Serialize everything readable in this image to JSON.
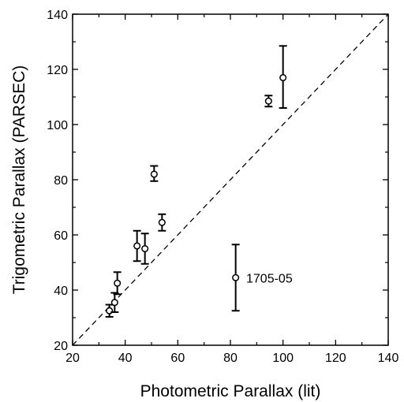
{
  "chart_data": {
    "type": "scatter",
    "title": "",
    "xlabel": "Photometric Parallax (lit)",
    "ylabel": "Trigometric Parallax (PARSEC)",
    "xlim": [
      20,
      140
    ],
    "ylim": [
      20,
      140
    ],
    "x_ticks": [
      20,
      40,
      60,
      80,
      100,
      120,
      140
    ],
    "y_ticks": [
      20,
      40,
      60,
      80,
      100,
      120,
      140
    ],
    "grid": false,
    "reference_line": {
      "style": "dashed",
      "from": [
        20,
        20
      ],
      "to": [
        140,
        140
      ]
    },
    "points": [
      {
        "x": 34,
        "y": 32.5,
        "err_low": 2.2,
        "err_high": 2.2
      },
      {
        "x": 36,
        "y": 35.5,
        "err_low": 3.5,
        "err_high": 3.5
      },
      {
        "x": 37,
        "y": 42.5,
        "err_low": 4.0,
        "err_high": 4.0
      },
      {
        "x": 44.5,
        "y": 56,
        "err_low": 5.5,
        "err_high": 5.5
      },
      {
        "x": 47.5,
        "y": 55,
        "err_low": 5.5,
        "err_high": 5.5
      },
      {
        "x": 51,
        "y": 82,
        "err_low": 2.5,
        "err_high": 3.0
      },
      {
        "x": 54,
        "y": 64.5,
        "err_low": 3.0,
        "err_high": 3.0
      },
      {
        "x": 82,
        "y": 44.5,
        "err_low": 12,
        "err_high": 12
      },
      {
        "x": 94.5,
        "y": 108.5,
        "err_low": 2.0,
        "err_high": 2.0
      },
      {
        "x": 100,
        "y": 117,
        "err_low": 11,
        "err_high": 11.5
      }
    ],
    "annotations": [
      {
        "text": "1705-05",
        "x": 86,
        "y": 44.5
      }
    ]
  }
}
